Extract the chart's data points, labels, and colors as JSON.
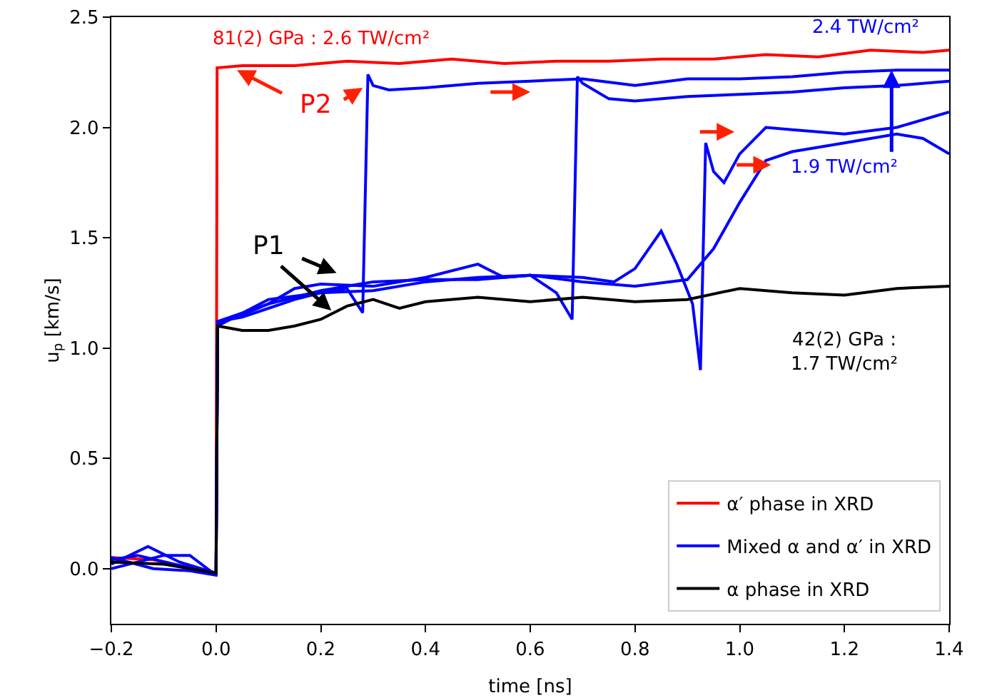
{
  "chart_data": {
    "type": "line",
    "xlabel": "time [ns]",
    "ylabel": "u$_{p}$ [km/s]",
    "xlim": [
      -0.2,
      1.4
    ],
    "ylim": [
      -0.25,
      2.5
    ],
    "xticks": [
      {
        "value": -0.2,
        "label": "−0.2"
      },
      {
        "value": 0,
        "label": "0.0"
      },
      {
        "value": 0.2,
        "label": "0.2"
      },
      {
        "value": 0.4,
        "label": "0.4"
      },
      {
        "value": 0.6,
        "label": "0.6"
      },
      {
        "value": 0.8,
        "label": "0.8"
      },
      {
        "value": 1,
        "label": "1.0"
      },
      {
        "value": 1.2,
        "label": "1.2"
      },
      {
        "value": 1.4,
        "label": "1.4"
      }
    ],
    "yticks": [
      {
        "value": 0,
        "label": "0.0"
      },
      {
        "value": 0.5,
        "label": "0.5"
      },
      {
        "value": 1,
        "label": "1.0"
      },
      {
        "value": 1.5,
        "label": "1.5"
      },
      {
        "value": 2,
        "label": "2.0"
      },
      {
        "value": 2.5,
        "label": "2.5"
      }
    ],
    "grid": false,
    "legend": "bottom right",
    "marker": "none",
    "line_style": "solid",
    "series": [
      {
        "name": "α′ phase in XRD",
        "color": "#ff0000",
        "x": [
          -0.2,
          -0.12,
          -0.05,
          0,
          0.002,
          0.05,
          0.15,
          0.25,
          0.35,
          0.45,
          0.55,
          0.65,
          0.75,
          0.85,
          0.95,
          1.05,
          1.15,
          1.25,
          1.35,
          1.4
        ],
        "values": [
          0.05,
          0.04,
          0.0,
          -0.02,
          2.27,
          2.28,
          2.28,
          2.3,
          2.29,
          2.31,
          2.29,
          2.3,
          2.3,
          2.31,
          2.31,
          2.33,
          2.32,
          2.35,
          2.34,
          2.35
        ]
      },
      {
        "name": "Mixed α and α′ in XRD",
        "color": "#0000ff",
        "x": [
          -0.2,
          -0.13,
          -0.07,
          0,
          0.003,
          0.05,
          0.1,
          0.15,
          0.2,
          0.25,
          0.28,
          0.29,
          0.3,
          0.33,
          0.4,
          0.5,
          0.6,
          0.7,
          0.8,
          0.9,
          1.0,
          1.1,
          1.2,
          1.3,
          1.4
        ],
        "values": [
          0.02,
          0.1,
          0.03,
          -0.02,
          1.12,
          1.14,
          1.18,
          1.22,
          1.25,
          1.27,
          1.16,
          2.24,
          2.19,
          2.17,
          2.18,
          2.2,
          2.21,
          2.22,
          2.19,
          2.22,
          2.22,
          2.23,
          2.25,
          2.26,
          2.26
        ]
      },
      {
        "color": "#0000ff",
        "x": [
          -0.2,
          -0.1,
          -0.05,
          0,
          0.003,
          0.05,
          0.1,
          0.15,
          0.2,
          0.3,
          0.4,
          0.5,
          0.55,
          0.6,
          0.65,
          0.68,
          0.69,
          0.7,
          0.75,
          0.8,
          0.9,
          1.0,
          1.1,
          1.2,
          1.3,
          1.4
        ],
        "values": [
          0.0,
          0.06,
          0.06,
          -0.03,
          1.11,
          1.15,
          1.2,
          1.27,
          1.29,
          1.28,
          1.32,
          1.38,
          1.32,
          1.33,
          1.25,
          1.13,
          2.23,
          2.2,
          2.13,
          2.12,
          2.14,
          2.15,
          2.16,
          2.18,
          2.19,
          2.21
        ]
      },
      {
        "color": "#0000ff",
        "x": [
          -0.2,
          -0.12,
          -0.05,
          0,
          0.003,
          0.1,
          0.2,
          0.3,
          0.4,
          0.5,
          0.6,
          0.7,
          0.76,
          0.8,
          0.85,
          0.88,
          0.91,
          0.925,
          0.935,
          0.95,
          0.97,
          1.0,
          1.05,
          1.1,
          1.2,
          1.3,
          1.4
        ],
        "values": [
          0.05,
          0.0,
          -0.01,
          -0.03,
          1.1,
          1.22,
          1.25,
          1.26,
          1.3,
          1.32,
          1.33,
          1.32,
          1.3,
          1.36,
          1.53,
          1.38,
          1.2,
          0.9,
          1.93,
          1.8,
          1.75,
          1.88,
          2.0,
          1.99,
          1.97,
          2.0,
          2.07
        ]
      },
      {
        "color": "#0000ff",
        "x": [
          -0.2,
          -0.15,
          -0.08,
          0,
          0.003,
          0.1,
          0.2,
          0.3,
          0.4,
          0.5,
          0.6,
          0.7,
          0.8,
          0.9,
          0.95,
          1.0,
          1.05,
          1.1,
          1.2,
          1.3,
          1.35,
          1.4
        ],
        "values": [
          0.04,
          0.06,
          0.02,
          -0.02,
          1.12,
          1.2,
          1.26,
          1.3,
          1.31,
          1.31,
          1.33,
          1.3,
          1.28,
          1.31,
          1.45,
          1.66,
          1.85,
          1.89,
          1.93,
          1.97,
          1.95,
          1.88
        ]
      },
      {
        "name": "α phase in XRD",
        "color": "#000000",
        "x": [
          -0.2,
          -0.1,
          0,
          0.003,
          0.05,
          0.1,
          0.15,
          0.2,
          0.25,
          0.3,
          0.35,
          0.4,
          0.5,
          0.6,
          0.7,
          0.8,
          0.9,
          1.0,
          1.1,
          1.2,
          1.3,
          1.4
        ],
        "values": [
          0.03,
          0.02,
          -0.02,
          1.1,
          1.08,
          1.08,
          1.1,
          1.13,
          1.19,
          1.22,
          1.18,
          1.21,
          1.23,
          1.21,
          1.23,
          1.21,
          1.22,
          1.27,
          1.25,
          1.24,
          1.27,
          1.28
        ]
      }
    ],
    "annotations": [
      "81(2) GPa : 2.6 TW/cm²",
      {
        "text": "P2",
        "x": 0.04,
        "y": 2.26
      },
      {
        "text": "P1",
        "x": 0.22,
        "y": 1.17
      },
      "2.4 TW/cm²",
      {
        "text": "1.9 TW/cm²",
        "x": 1.29,
        "y": 2.26
      },
      "42(2) GPa :\n1.7 TW/cm²"
    ]
  }
}
